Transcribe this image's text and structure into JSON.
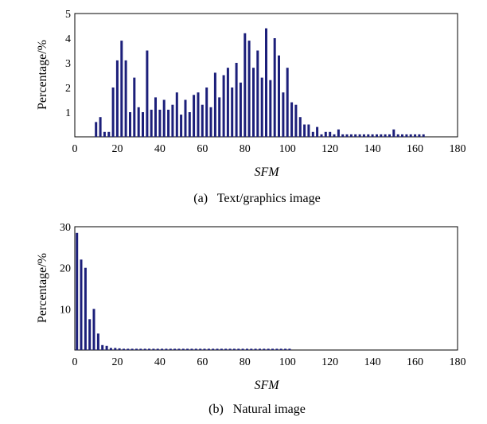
{
  "chart_data": [
    {
      "type": "bar",
      "caption": "(a)   Text/graphics image",
      "xlabel": "SFM",
      "ylabel": "Percentage/%",
      "xlim": [
        0,
        180
      ],
      "ylim": [
        0,
        5
      ],
      "xticks": [
        0,
        20,
        40,
        60,
        80,
        100,
        120,
        140,
        160,
        180
      ],
      "yticks": [
        1,
        2,
        3,
        4,
        5
      ],
      "bar_color": "#1c1f7a",
      "x": [
        10,
        12,
        14,
        16,
        18,
        20,
        22,
        24,
        26,
        28,
        30,
        32,
        34,
        36,
        38,
        40,
        42,
        44,
        46,
        48,
        50,
        52,
        54,
        56,
        58,
        60,
        62,
        64,
        66,
        68,
        70,
        72,
        74,
        76,
        78,
        80,
        82,
        84,
        86,
        88,
        90,
        92,
        94,
        96,
        98,
        100,
        102,
        104,
        106,
        108,
        110,
        112,
        114,
        116,
        118,
        120,
        122,
        124,
        126,
        128,
        130,
        132,
        134,
        136,
        138,
        140,
        142,
        144,
        146,
        148,
        150,
        152,
        154,
        156,
        158,
        160,
        162,
        164
      ],
      "values": [
        0.6,
        0.8,
        0.2,
        0.2,
        2.0,
        3.1,
        3.9,
        3.1,
        1.0,
        2.4,
        1.2,
        1.0,
        3.5,
        1.1,
        1.6,
        1.1,
        1.5,
        1.1,
        1.3,
        1.8,
        0.9,
        1.5,
        1.0,
        1.7,
        1.8,
        1.3,
        2.0,
        1.2,
        2.6,
        1.6,
        2.5,
        2.8,
        2.0,
        3.0,
        2.2,
        4.2,
        3.9,
        2.8,
        3.5,
        2.4,
        4.4,
        2.3,
        4.0,
        3.3,
        1.8,
        2.8,
        1.4,
        1.3,
        0.8,
        0.5,
        0.5,
        0.2,
        0.4,
        0.1,
        0.2,
        0.2,
        0.1,
        0.3,
        0.1,
        0.1,
        0.1,
        0.1,
        0.1,
        0.1,
        0.1,
        0.1,
        0.1,
        0.1,
        0.1,
        0.1,
        0.3,
        0.1,
        0.1,
        0.1,
        0.1,
        0.1,
        0.1,
        0.1
      ]
    },
    {
      "type": "bar",
      "caption": "(b)   Natural image",
      "xlabel": "SFM",
      "ylabel": "Percentage/%",
      "xlim": [
        0,
        180
      ],
      "ylim": [
        0,
        30
      ],
      "xticks": [
        0,
        20,
        40,
        60,
        80,
        100,
        120,
        140,
        160,
        180
      ],
      "yticks": [
        10,
        20,
        30
      ],
      "bar_color": "#1c1f7a",
      "x": [
        1,
        3,
        5,
        7,
        9,
        11,
        13,
        15,
        17,
        19,
        21,
        23,
        25,
        27,
        29,
        31,
        33,
        35,
        37,
        39,
        41,
        43,
        45,
        47,
        49,
        51,
        53,
        55,
        57,
        59,
        61,
        63,
        65,
        67,
        69,
        71,
        73,
        75,
        77,
        79,
        81,
        83,
        85,
        87,
        89,
        91,
        93,
        95,
        97,
        99,
        101
      ],
      "values": [
        28.5,
        22.0,
        20.0,
        7.5,
        10.0,
        4.0,
        1.2,
        1.0,
        0.5,
        0.5,
        0.4,
        0.3,
        0.3,
        0.3,
        0.3,
        0.3,
        0.3,
        0.3,
        0.3,
        0.3,
        0.3,
        0.3,
        0.3,
        0.3,
        0.3,
        0.3,
        0.3,
        0.3,
        0.3,
        0.3,
        0.3,
        0.3,
        0.3,
        0.3,
        0.3,
        0.3,
        0.3,
        0.3,
        0.3,
        0.3,
        0.3,
        0.3,
        0.3,
        0.3,
        0.3,
        0.3,
        0.3,
        0.3,
        0.3,
        0.3,
        0.3
      ]
    }
  ]
}
